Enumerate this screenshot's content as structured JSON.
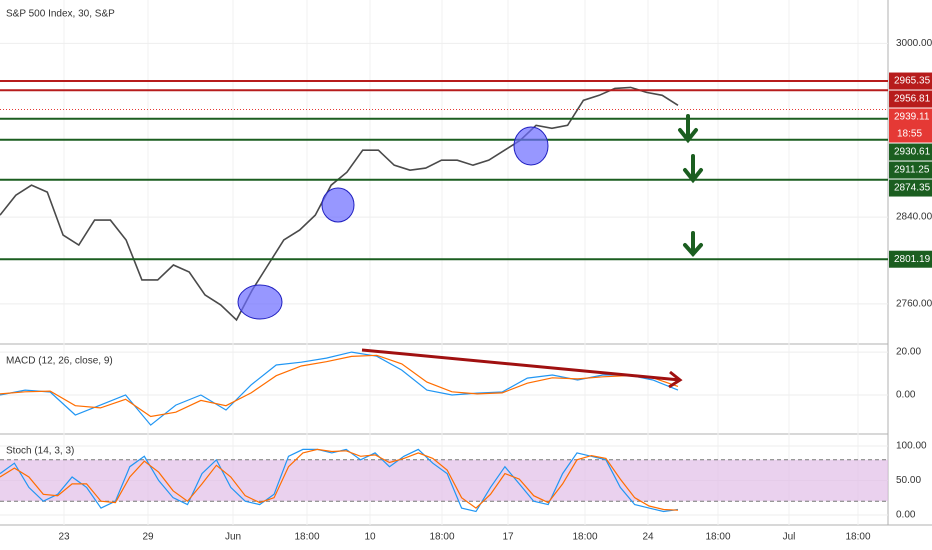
{
  "title": "S&P 500 Index, 30, S&P",
  "x_labels": [
    "23",
    "29",
    "Jun",
    "18:00",
    "10",
    "18:00",
    "17",
    "18:00",
    "24",
    "18:00",
    "Jul",
    "18:00"
  ],
  "chart_data": [
    {
      "type": "line",
      "ylim": [
        2724,
        3040
      ],
      "yticks": [
        {
          "value": 3000,
          "label": "3000.00"
        },
        {
          "value": 2840,
          "label": "2840.00"
        },
        {
          "value": 2760,
          "label": "2760.00"
        }
      ],
      "color": "#4a4a4a",
      "values": [
        2841.8,
        2860.2,
        2869.4,
        2863.0,
        2823.4,
        2814.3,
        2837.2,
        2837.2,
        2818.9,
        2782.1,
        2782.1,
        2795.9,
        2789.4,
        2768.3,
        2759.1,
        2745.3,
        2772.9,
        2795.9,
        2818.9,
        2828.0,
        2841.8,
        2869.4,
        2881.4,
        2901.6,
        2901.6,
        2887.8,
        2883.2,
        2885.1,
        2892.4,
        2892.4,
        2887.8,
        2892.4,
        2901.6,
        2910.8,
        2924.6,
        2921.8,
        2924.6,
        2947.6,
        2952.2,
        2958.6,
        2959.5,
        2954.9,
        2952.2,
        2943.0
      ],
      "levels": [
        {
          "value": 2965.35,
          "label": "2965.35",
          "color": "#b71c1c"
        },
        {
          "value": 2956.81,
          "label": "2956.81",
          "color": "#b71c1c"
        },
        {
          "value": 2930.61,
          "label": "2930.61",
          "color": "#1b5e20"
        },
        {
          "value": 2911.25,
          "label": "2911.25",
          "color": "#1b5e20"
        },
        {
          "value": 2874.35,
          "label": "2874.35",
          "color": "#1b5e20"
        },
        {
          "value": 2801.19,
          "label": "2801.19",
          "color": "#1b5e20"
        }
      ],
      "current": {
        "value": 2939.11,
        "label": "2939.11",
        "countdown": "18:55",
        "color": "#e53935"
      }
    },
    {
      "type": "line",
      "title": "MACD (12, 26, close, 9)",
      "ylim": [
        -17.7,
        23.3
      ],
      "yticks": [
        {
          "value": 20,
          "label": "20.00"
        },
        {
          "value": 0,
          "label": "0.00"
        }
      ],
      "series": [
        {
          "color": "#2196f3",
          "values": [
            0,
            2.3,
            1.4,
            -9.3,
            -4.7,
            0,
            -14.0,
            -4.7,
            0,
            -7.0,
            4.7,
            14.0,
            15.3,
            17.2,
            20.0,
            18.1,
            11.6,
            2.3,
            0,
            0.9,
            1.4,
            7.9,
            9.3,
            7.0,
            9.3,
            9.3,
            7.0,
            2.3
          ]
        },
        {
          "color": "#ff6d00",
          "values": [
            0.5,
            1.5,
            1.8,
            -5.0,
            -6.0,
            -2.0,
            -10.0,
            -8.0,
            -2.5,
            -5.0,
            1.0,
            9.0,
            13.5,
            15.5,
            18.0,
            18.5,
            14.5,
            6.0,
            1.5,
            0.5,
            1.0,
            5.5,
            8.0,
            7.5,
            8.5,
            9.0,
            8.0,
            4.0
          ]
        }
      ]
    },
    {
      "type": "line",
      "title": "Stoch (14, 3, 3)",
      "ylim": [
        -14.5,
        115.9
      ],
      "yticks": [
        {
          "value": 100,
          "label": "100.00"
        },
        {
          "value": 50,
          "label": "50.00"
        },
        {
          "value": 0,
          "label": "0.00"
        }
      ],
      "band": [
        20,
        80
      ],
      "series": [
        {
          "color": "#2196f3",
          "values": [
            60,
            75,
            40,
            20,
            30,
            55,
            40,
            10,
            20,
            70,
            85,
            50,
            25,
            15,
            60,
            80,
            40,
            20,
            15,
            30,
            85,
            95,
            95,
            90,
            95,
            80,
            90,
            70,
            85,
            95,
            75,
            60,
            10,
            5,
            40,
            70,
            45,
            20,
            15,
            60,
            90,
            85,
            80,
            40,
            15,
            10,
            5,
            8
          ]
        },
        {
          "color": "#ff6d00",
          "values": [
            55,
            68,
            55,
            30,
            28,
            45,
            45,
            20,
            18,
            55,
            78,
            62,
            35,
            20,
            45,
            72,
            55,
            28,
            18,
            25,
            70,
            90,
            95,
            92,
            93,
            85,
            87,
            76,
            82,
            90,
            82,
            65,
            25,
            10,
            30,
            60,
            52,
            28,
            18,
            45,
            80,
            86,
            82,
            52,
            25,
            13,
            8,
            7
          ]
        }
      ]
    }
  ]
}
